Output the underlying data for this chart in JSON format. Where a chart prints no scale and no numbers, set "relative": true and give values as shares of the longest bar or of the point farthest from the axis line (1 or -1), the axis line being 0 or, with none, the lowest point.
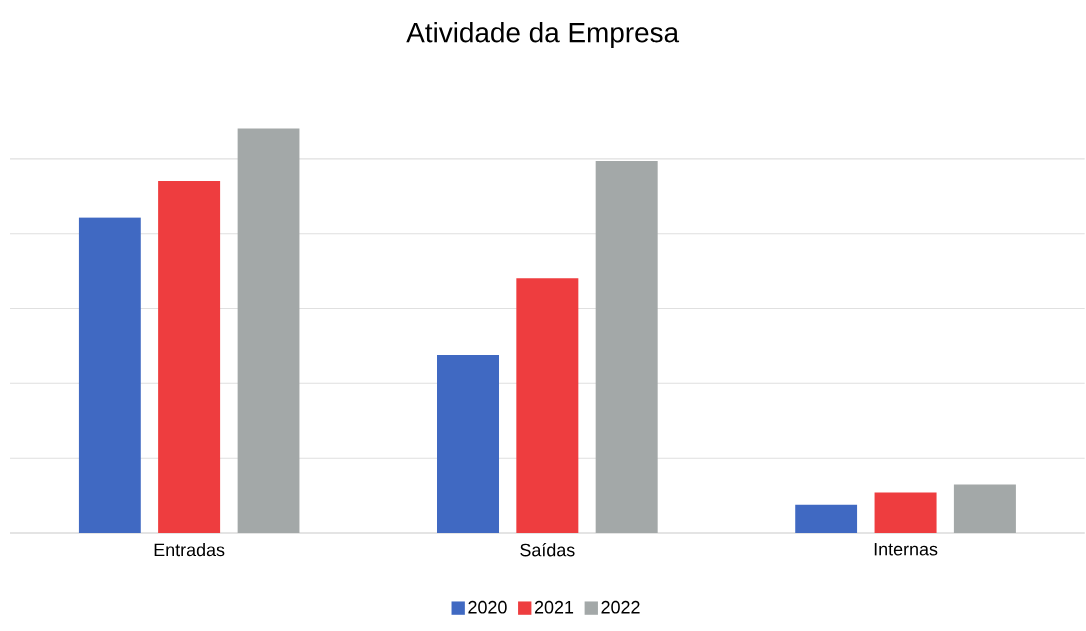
{
  "chart_data": {
    "type": "bar",
    "title": "Atividade da Empresa",
    "relative": true,
    "grid": "y",
    "legend": "bottom",
    "categories": [
      "Entradas",
      "Saídas",
      "Internas"
    ],
    "series": [
      {
        "name": "2020",
        "color": "#4069c2",
        "values": [
          0.78,
          0.44,
          0.07
        ]
      },
      {
        "name": "2021",
        "color": "#ee3d3f",
        "values": [
          0.87,
          0.63,
          0.1
        ]
      },
      {
        "name": "2022",
        "color": "#a3a8a8",
        "values": [
          1.0,
          0.92,
          0.12
        ]
      }
    ]
  }
}
